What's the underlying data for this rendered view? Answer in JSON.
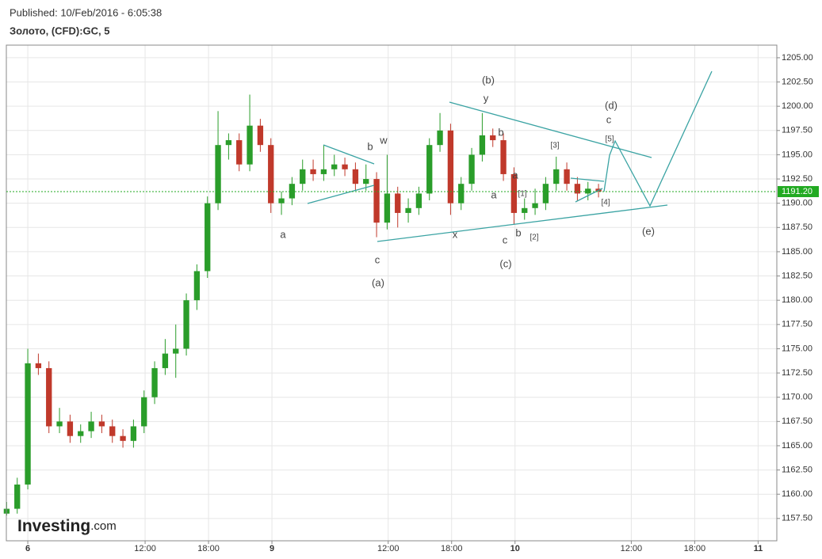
{
  "header": {
    "published": "Published: 10/Feb/2016 - 6:05:38",
    "instrument": "Золото, (CFD):GC, 5"
  },
  "watermark": {
    "brand": "Investing",
    "suffix": ".com"
  },
  "chart_data": {
    "type": "candlestick",
    "up_color": "#2a9d2a",
    "down_color": "#c0392b",
    "grid": true,
    "x": [
      -2,
      -1,
      0,
      1,
      2,
      3,
      4,
      5,
      6,
      7,
      8,
      9,
      10,
      11,
      12,
      13,
      14,
      15,
      16,
      17,
      18,
      19,
      20,
      21,
      22,
      23,
      24,
      25,
      26,
      27,
      28,
      29,
      30,
      31,
      32,
      33,
      34,
      35,
      36,
      37,
      38,
      39,
      40,
      41,
      42,
      43,
      44,
      45,
      46,
      47,
      48,
      49,
      50,
      51,
      52,
      53,
      54
    ],
    "open": [
      1158,
      1158.5,
      1161,
      1173.5,
      1173,
      1167,
      1167.5,
      1166,
      1166.5,
      1167.5,
      1167,
      1166,
      1165.5,
      1167,
      1170,
      1173,
      1174.5,
      1175,
      1180,
      1183,
      1190,
      1196,
      1196.5,
      1194,
      1198,
      1196,
      1190,
      1190.5,
      1192,
      1193.5,
      1193,
      1193.5,
      1194,
      1193.5,
      1192,
      1192.5,
      1188,
      1191,
      1189,
      1189.5,
      1191,
      1196,
      1197.5,
      1190,
      1192,
      1195,
      1197,
      1196.5,
      1193,
      1189,
      1189.5,
      1190,
      1192,
      1193.5,
      1192,
      1191,
      1191.5
    ],
    "high": [
      1159.2,
      1161.7,
      1175,
      1174.5,
      1173.7,
      1168.9,
      1168.2,
      1167.2,
      1168.5,
      1168.2,
      1167.7,
      1166.7,
      1167.7,
      1170.7,
      1173.7,
      1176,
      1177.5,
      1180.7,
      1183.7,
      1190.7,
      1199.5,
      1197.2,
      1197.2,
      1201.2,
      1198.7,
      1196.7,
      1191.2,
      1192.7,
      1194.5,
      1194.5,
      1196,
      1195,
      1194.7,
      1194.2,
      1194,
      1193.2,
      1195,
      1191.7,
      1190.5,
      1191.7,
      1196.7,
      1199.3,
      1198.2,
      1192.7,
      1195.7,
      1199.3,
      1197.7,
      1197.2,
      1193.7,
      1190.5,
      1191.5,
      1192.7,
      1194.8,
      1194.2,
      1192.7,
      1192.2,
      1192
    ],
    "low": [
      1157.8,
      1158,
      1160.5,
      1172.3,
      1166.3,
      1166.3,
      1165.3,
      1165.3,
      1165.8,
      1166.3,
      1165.3,
      1164.8,
      1164.8,
      1166.3,
      1169.3,
      1172.3,
      1172,
      1174.3,
      1179,
      1182.3,
      1189.3,
      1194.5,
      1193.3,
      1193.3,
      1195.3,
      1189,
      1188.8,
      1189.8,
      1191.3,
      1192.3,
      1192.3,
      1192.8,
      1192.8,
      1191.3,
      1191.3,
      1186.5,
      1187.3,
      1187.5,
      1188,
      1188.8,
      1190.3,
      1195.3,
      1188.8,
      1189.3,
      1191.3,
      1194.3,
      1195.8,
      1192.3,
      1187.8,
      1188.3,
      1188.8,
      1189.3,
      1191.3,
      1191.3,
      1190.3,
      1190.3,
      1190.6
    ],
    "close": [
      1158.5,
      1161,
      1173.5,
      1173,
      1167,
      1167.5,
      1166,
      1166.5,
      1167.5,
      1167,
      1166,
      1165.5,
      1167,
      1170,
      1173,
      1174.5,
      1175,
      1180,
      1183,
      1190,
      1196,
      1196.5,
      1194,
      1198,
      1196,
      1190,
      1190.5,
      1192,
      1193.5,
      1193,
      1193.5,
      1194,
      1193.5,
      1192,
      1192.5,
      1188,
      1191,
      1189,
      1189.5,
      1191,
      1196,
      1197.5,
      1190,
      1192,
      1195,
      1197,
      1196.5,
      1193,
      1189,
      1189.5,
      1190,
      1192,
      1193.5,
      1192,
      1191,
      1191.5,
      1191.2
    ],
    "last_price": 1191.2,
    "last_price_label": "1191.20",
    "last_price_color": "#22aa22",
    "xlim": [
      -2.03,
      70.87
    ],
    "xticks": [
      {
        "value": 0,
        "label": "6"
      },
      {
        "value": 11.1,
        "label": "12:00"
      },
      {
        "value": 17.1,
        "label": "18:00"
      },
      {
        "value": 23.1,
        "label": "9"
      },
      {
        "value": 34.1,
        "label": "12:00"
      },
      {
        "value": 40.1,
        "label": "18:00"
      },
      {
        "value": 46.1,
        "label": "10"
      },
      {
        "value": 57.1,
        "label": "12:00"
      },
      {
        "value": 63.1,
        "label": "18:00"
      },
      {
        "value": 69.1,
        "label": "11"
      }
    ],
    "ylim": [
      1155.2,
      1206.3
    ],
    "yticks": [
      {
        "value": 1157.5,
        "label": "1157.50"
      },
      {
        "value": 1160,
        "label": "1160.00"
      },
      {
        "value": 1162.5,
        "label": "1162.50"
      },
      {
        "value": 1165,
        "label": "1165.00"
      },
      {
        "value": 1167.5,
        "label": "1167.50"
      },
      {
        "value": 1170,
        "label": "1170.00"
      },
      {
        "value": 1172.5,
        "label": "1172.50"
      },
      {
        "value": 1175,
        "label": "1175.00"
      },
      {
        "value": 1177.5,
        "label": "1177.50"
      },
      {
        "value": 1180,
        "label": "1180.00"
      },
      {
        "value": 1182.5,
        "label": "1182.50"
      },
      {
        "value": 1185,
        "label": "1185.00"
      },
      {
        "value": 1187.5,
        "label": "1187.50"
      },
      {
        "value": 1190,
        "label": "1190.00"
      },
      {
        "value": 1192.5,
        "label": "1192.50"
      },
      {
        "value": 1195,
        "label": "1195.00"
      },
      {
        "value": 1197.5,
        "label": "1197.50"
      },
      {
        "value": 1200,
        "label": "1200.00"
      },
      {
        "value": 1202.5,
        "label": "1202.50"
      },
      {
        "value": 1205,
        "label": "1205.00"
      }
    ],
    "annotations": [
      "(b)",
      "y",
      "(d)",
      "c",
      "b",
      "w",
      "b",
      "[3]",
      "[5]",
      "a",
      "a",
      "[1]",
      "[4]",
      "a",
      "x",
      "c",
      "b",
      "[2]",
      "(e)",
      "c",
      "(a)",
      "(c)"
    ]
  }
}
